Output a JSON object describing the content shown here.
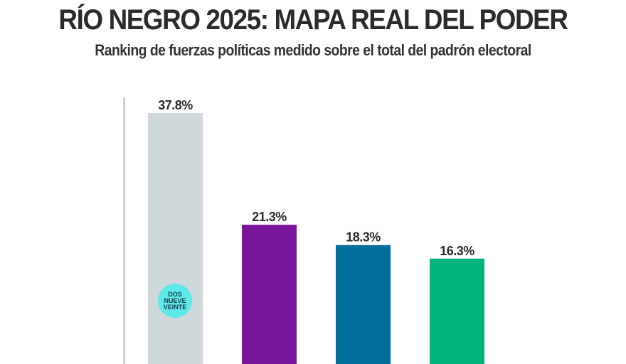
{
  "header": {
    "title": "RÍO NEGRO 2025: MAPA REAL DEL PODER",
    "subtitle": "Ranking de fuerzas políticas medido sobre el total del padrón electoral"
  },
  "logo": {
    "line1": "DOS",
    "line2": "NUEVE",
    "line3": "VEINTE",
    "tagline": "",
    "color": "#5ee8ea"
  },
  "chart_data": {
    "type": "bar",
    "title": "RÍO NEGRO 2025: MAPA REAL DEL PODER",
    "subtitle": "Ranking de fuerzas políticas medido sobre el total del padrón electoral",
    "xlabel": "",
    "ylabel": "",
    "categories": [
      "",
      "",
      "",
      ""
    ],
    "values": [
      37.8,
      21.3,
      18.3,
      16.3
    ],
    "labels": [
      "37.8%",
      "21.3%",
      "18.3%",
      "16.3%"
    ],
    "colors": [
      "#cfd8db",
      "#7a1699",
      "#006e9b",
      "#00b47c"
    ],
    "ylim": [
      0,
      37.8
    ],
    "grid": false,
    "legend": "none"
  }
}
